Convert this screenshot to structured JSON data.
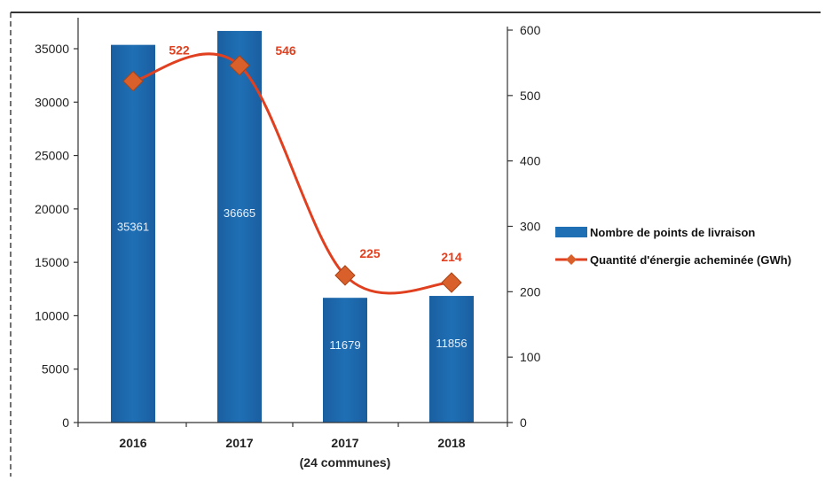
{
  "chart_data": {
    "type": "bar",
    "categories": [
      {
        "line1": "2016",
        "line2": ""
      },
      {
        "line1": "2017",
        "line2": ""
      },
      {
        "line1": "2017",
        "line2": "(24 communes)"
      },
      {
        "line1": "2018",
        "line2": ""
      }
    ],
    "series": [
      {
        "name": "Nombre de points de livraison",
        "type": "bar",
        "axis": "left",
        "values": [
          35361,
          36665,
          11679,
          11856
        ],
        "labels": [
          "35361",
          "36665",
          "11679",
          "11856"
        ],
        "color": "#1f6fb5"
      },
      {
        "name": "Quantité d'énergie acheminée (GWh)",
        "type": "line",
        "axis": "right",
        "values": [
          522,
          546,
          225,
          214
        ],
        "labels": [
          "522",
          "546",
          "225",
          "214"
        ],
        "color": "#e0401f",
        "marker_color": "#d9602a"
      }
    ],
    "y_left": {
      "range": [
        0,
        36665
      ],
      "ticks": [
        0,
        5000,
        10000,
        15000,
        20000,
        25000,
        30000,
        35000
      ],
      "tick_labels": [
        "0",
        "5000",
        "10000",
        "15000",
        "20000",
        "25000",
        "30000",
        "35000"
      ]
    },
    "y_right": {
      "range": [
        0,
        600
      ],
      "ticks": [
        0,
        100,
        200,
        300,
        400,
        500,
        600
      ],
      "tick_labels": [
        "0",
        "100",
        "200",
        "300",
        "400",
        "500",
        "600"
      ]
    },
    "legend_position": "right",
    "grid": false
  }
}
